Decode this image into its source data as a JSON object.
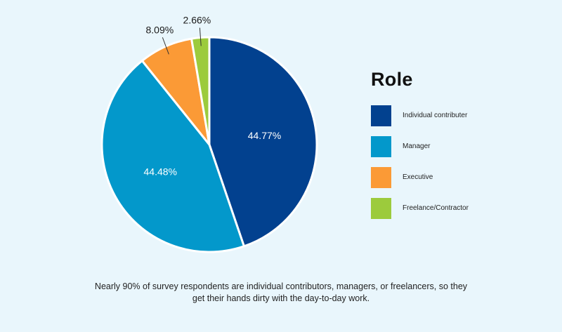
{
  "chart_data": {
    "type": "pie",
    "legend_title": "Role",
    "legend_position": "right",
    "slices": [
      {
        "label": "Individual contributer",
        "value": 44.77,
        "value_label": "44.77%",
        "color": "#02418f"
      },
      {
        "label": "Manager",
        "value": 44.48,
        "value_label": "44.48%",
        "color": "#0398cb"
      },
      {
        "label": "Executive",
        "value": 8.09,
        "value_label": "8.09%",
        "color": "#fb9a36"
      },
      {
        "label": "Freelance/Contractor",
        "value": 2.66,
        "value_label": "2.66%",
        "color": "#9ccb3c"
      }
    ]
  },
  "caption": {
    "line1": "Nearly 90% of survey respondents are individual contributors, managers, or freelancers, so they",
    "line2": "get their hands dirty with the day-to-day work."
  }
}
